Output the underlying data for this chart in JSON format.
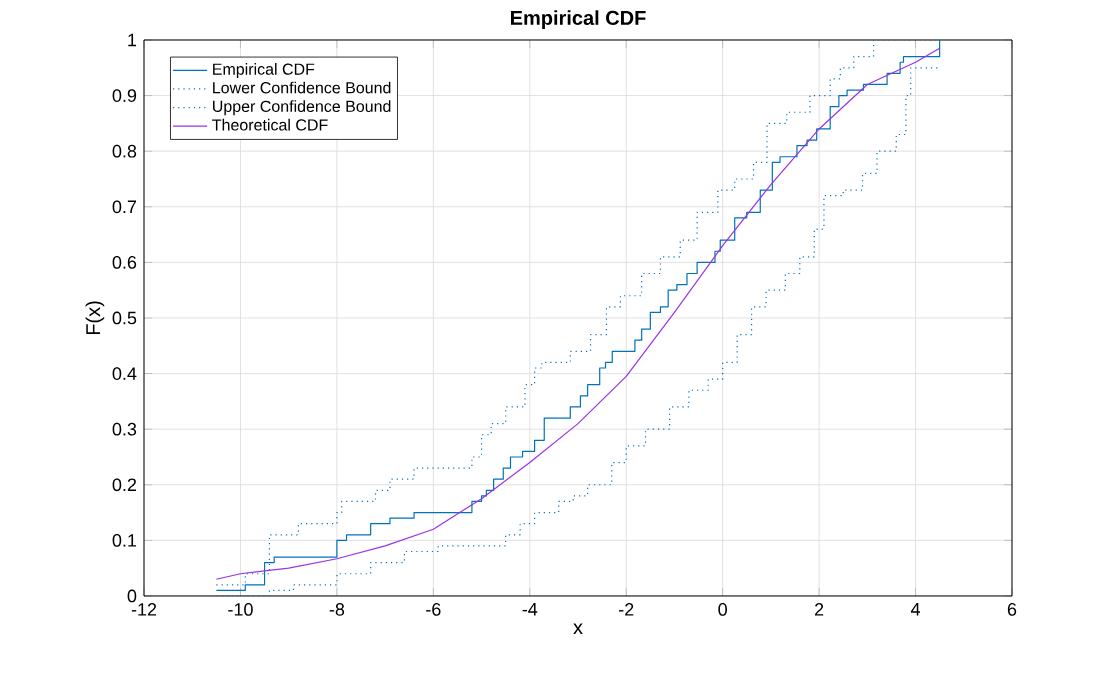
{
  "chart_data": {
    "type": "step",
    "title": "Empirical CDF",
    "xlabel": "x",
    "ylabel": "F(x)",
    "xlim": [
      -12,
      6
    ],
    "xticks": [
      -12,
      -10,
      -8,
      -6,
      -4,
      -2,
      0,
      2,
      4,
      6
    ],
    "ylim": [
      0,
      1
    ],
    "yticks": [
      0,
      0.1,
      0.2,
      0.3,
      0.4,
      0.5,
      0.6,
      0.7,
      0.8,
      0.9,
      1
    ],
    "grid": true,
    "legend": "top left",
    "marker": "none",
    "series": [
      {
        "name": "Empirical CDF",
        "color": "#0072bd",
        "line_style": "solid",
        "x": [
          -10.5,
          -9.9,
          -9.5,
          -9.3,
          -8.0,
          -7.8,
          -7.3,
          -6.9,
          -6.4,
          -5.2,
          -5.0,
          -4.9,
          -4.75,
          -4.55,
          -4.4,
          -4.15,
          -3.9,
          -3.7,
          -3.16,
          -2.95,
          -2.8,
          -2.55,
          -2.43,
          -2.29,
          -1.82,
          -1.68,
          -1.5,
          -1.29,
          -1.13,
          -0.95,
          -0.74,
          -0.53,
          -0.16,
          -0.05,
          0.25,
          0.5,
          0.78,
          1.03,
          1.19,
          1.54,
          1.75,
          1.95,
          2.23,
          2.41,
          2.58,
          2.92,
          3.41,
          3.68,
          3.75,
          4.5
        ],
        "values": [
          0.01,
          0.02,
          0.06,
          0.07,
          0.1,
          0.11,
          0.13,
          0.14,
          0.15,
          0.17,
          0.18,
          0.19,
          0.21,
          0.23,
          0.25,
          0.26,
          0.28,
          0.32,
          0.34,
          0.36,
          0.38,
          0.41,
          0.42,
          0.44,
          0.46,
          0.48,
          0.51,
          0.52,
          0.55,
          0.56,
          0.58,
          0.6,
          0.62,
          0.64,
          0.68,
          0.69,
          0.73,
          0.78,
          0.79,
          0.81,
          0.82,
          0.84,
          0.88,
          0.9,
          0.91,
          0.92,
          0.94,
          0.96,
          0.97,
          1
        ]
      },
      {
        "name": "Lower Confidence Bound",
        "color": "#0072bd",
        "line_style": "dotted",
        "x": [
          -10.5,
          -9.4,
          -8.9,
          -8.0,
          -7.3,
          -6.6,
          -5.9,
          -4.7,
          -4.5,
          -4.2,
          -3.9,
          -3.4,
          -3.1,
          -2.8,
          -2.3,
          -2.0,
          -1.6,
          -1.1,
          -0.7,
          -0.3,
          0,
          0.3,
          0.6,
          0.9,
          1.3,
          1.6,
          1.9,
          2.1,
          2.5,
          2.9,
          3.2,
          3.6,
          3.8,
          3.9,
          4.5
        ],
        "values": [
          0,
          0.01,
          0.02,
          0.04,
          0.06,
          0.08,
          0.09,
          0.09,
          0.11,
          0.13,
          0.15,
          0.17,
          0.18,
          0.2,
          0.24,
          0.27,
          0.3,
          0.34,
          0.37,
          0.39,
          0.42,
          0.47,
          0.52,
          0.55,
          0.58,
          0.61,
          0.66,
          0.72,
          0.73,
          0.76,
          0.8,
          0.83,
          0.9,
          0.95,
          0.95
        ]
      },
      {
        "name": "Upper Confidence Bound",
        "color": "#0072bd",
        "line_style": "dotted",
        "x": [
          -10.5,
          -9.9,
          -9.4,
          -8.8,
          -8.0,
          -7.9,
          -7.2,
          -6.9,
          -6.4,
          -5.2,
          -5.0,
          -4.8,
          -4.5,
          -4.1,
          -3.9,
          -3.75,
          -3.16,
          -2.74,
          -2.41,
          -2.12,
          -1.68,
          -1.29,
          -0.88,
          -0.53,
          -0.1,
          0.25,
          0.64,
          0.92,
          1.33,
          1.81,
          2.23,
          2.44,
          2.72,
          3.13,
          4.5
        ],
        "values": [
          0.02,
          0.04,
          0.11,
          0.13,
          0.15,
          0.17,
          0.19,
          0.21,
          0.23,
          0.25,
          0.29,
          0.31,
          0.34,
          0.38,
          0.41,
          0.42,
          0.44,
          0.47,
          0.52,
          0.54,
          0.58,
          0.61,
          0.64,
          0.69,
          0.73,
          0.75,
          0.78,
          0.85,
          0.87,
          0.9,
          0.93,
          0.95,
          0.97,
          1,
          1
        ]
      },
      {
        "name": "Theoretical CDF",
        "type": "line",
        "color": "#9a32e6",
        "line_style": "solid",
        "x": [
          -10.5,
          -10,
          -9,
          -8,
          -7,
          -6,
          -5,
          -4,
          -3,
          -2,
          -1,
          0,
          1,
          2,
          3,
          4,
          4.5
        ],
        "values": [
          0.03,
          0.04,
          0.05,
          0.067,
          0.09,
          0.12,
          0.175,
          0.24,
          0.31,
          0.395,
          0.51,
          0.63,
          0.74,
          0.84,
          0.92,
          0.96,
          0.985
        ]
      }
    ]
  }
}
